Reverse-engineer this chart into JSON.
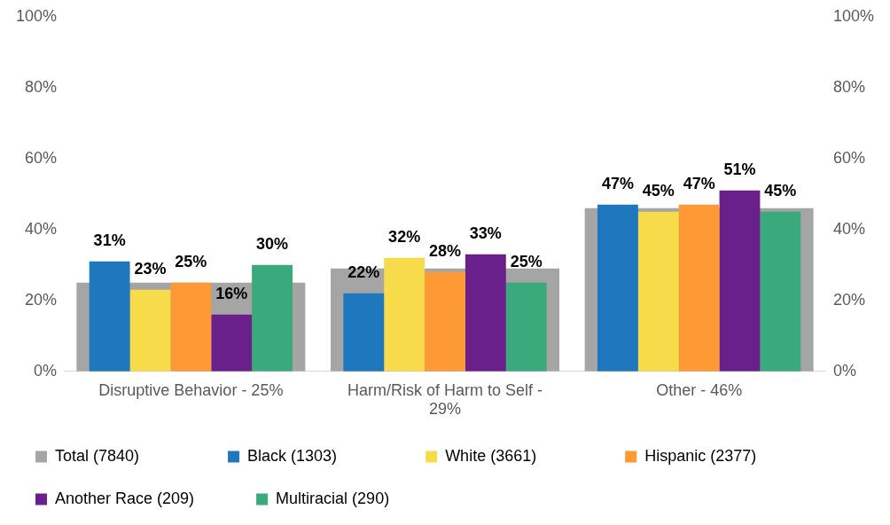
{
  "chart_data": {
    "type": "bar",
    "categories": [
      "Disruptive Behavior - 25%",
      "Harm/Risk of Harm to Self - 29%",
      "Other - 46%"
    ],
    "series": [
      {
        "name": "Total (7840)",
        "color": "#a5a5a5",
        "values": [
          25,
          29,
          46
        ]
      },
      {
        "name": "Black (1303)",
        "color": "#1f78be",
        "values": [
          31,
          22,
          47
        ],
        "value_labels": [
          "31%",
          "22%",
          "47%"
        ]
      },
      {
        "name": "White (3661)",
        "color": "#f8db4b",
        "values": [
          23,
          32,
          45
        ],
        "value_labels": [
          "23%",
          "32%",
          "45%"
        ]
      },
      {
        "name": "Hispanic (2377)",
        "color": "#fd9a35",
        "values": [
          25,
          28,
          47
        ],
        "value_labels": [
          "25%",
          "28%",
          "47%"
        ]
      },
      {
        "name": "Another Race (209)",
        "color": "#6a208b",
        "values": [
          16,
          33,
          51
        ],
        "value_labels": [
          "16%",
          "33%",
          "51%"
        ]
      },
      {
        "name": "Multiracial (290)",
        "color": "#3aa97b",
        "values": [
          30,
          25,
          45
        ],
        "value_labels": [
          "30%",
          "25%",
          "45%"
        ]
      }
    ],
    "ylim": [
      0,
      100
    ],
    "yticks": [
      {
        "value": 0,
        "label": "0%"
      },
      {
        "value": 20,
        "label": "20%"
      },
      {
        "value": 40,
        "label": "40%"
      },
      {
        "value": 60,
        "label": "60%"
      },
      {
        "value": 80,
        "label": "80%"
      },
      {
        "value": 100,
        "label": "100%"
      }
    ],
    "y2lim": [
      0,
      100
    ],
    "y2ticks": [
      {
        "value": 0,
        "label": "0%"
      },
      {
        "value": 20,
        "label": "20%"
      },
      {
        "value": 40,
        "label": "40%"
      },
      {
        "value": 60,
        "label": "60%"
      },
      {
        "value": 80,
        "label": "80%"
      },
      {
        "value": 100,
        "label": "100%"
      }
    ],
    "legend": "bottom",
    "grid": false
  }
}
